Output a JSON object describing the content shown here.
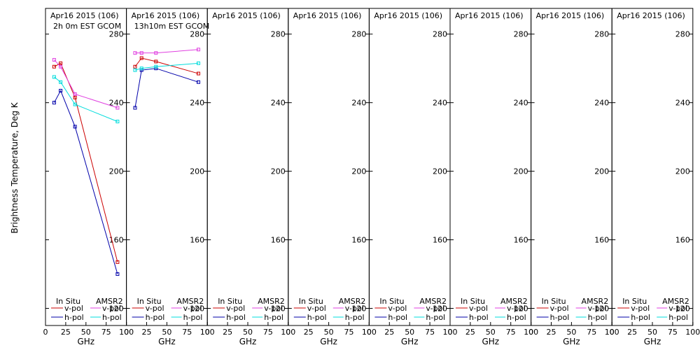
{
  "figure": {
    "ylabel": "Brightness Temperature, Deg K",
    "xlabel": "GHz",
    "legend": {
      "in_situ": "In Situ",
      "amsr2": "AMSR2",
      "vpol": "v-pol",
      "hpol": "h-pol"
    }
  },
  "chart_data": [
    {
      "type": "line",
      "title": "Apr16 2015 (106)",
      "subtitle": "2h 0m EST GCOM",
      "xlabel": "GHz",
      "ylabel": "Brightness Temperature, Deg K",
      "xlim": [
        0,
        100
      ],
      "ylim": [
        110,
        295
      ],
      "xticks": [
        0,
        25,
        50,
        75,
        100
      ],
      "yticks": [
        120,
        160,
        200,
        240,
        280
      ],
      "series": [
        {
          "name": "In Situ v-pol",
          "color": "#cc0000",
          "x": [
            10.7,
            18.7,
            36.5,
            89
          ],
          "y": [
            261,
            263,
            243,
            147
          ]
        },
        {
          "name": "In Situ h-pol",
          "color": "#0000aa",
          "x": [
            10.7,
            18.7,
            36.5,
            89
          ],
          "y": [
            240,
            247,
            226,
            140
          ]
        },
        {
          "name": "AMSR2 v-pol",
          "color": "#e040e0",
          "x": [
            10.7,
            18.7,
            36.5,
            89
          ],
          "y": [
            265,
            261,
            245,
            237
          ]
        },
        {
          "name": "AMSR2 h-pol",
          "color": "#00dcdc",
          "x": [
            10.7,
            18.7,
            36.5,
            89
          ],
          "y": [
            255,
            252,
            239,
            229
          ]
        }
      ]
    },
    {
      "type": "line",
      "title": "Apr16 2015 (106)",
      "subtitle": "13h10m EST GCOM",
      "xlabel": "GHz",
      "xlim": [
        0,
        100
      ],
      "ylim": [
        110,
        295
      ],
      "xticks": [
        0,
        25,
        50,
        75,
        100
      ],
      "yticks": [
        120,
        160,
        200,
        240,
        280
      ],
      "series": [
        {
          "name": "In Situ v-pol",
          "color": "#cc0000",
          "x": [
            10.7,
            18.7,
            36.5,
            89
          ],
          "y": [
            261,
            266,
            264,
            257
          ]
        },
        {
          "name": "In Situ h-pol",
          "color": "#0000aa",
          "x": [
            10.7,
            18.7,
            36.5,
            89
          ],
          "y": [
            237,
            259,
            260,
            252
          ]
        },
        {
          "name": "AMSR2 v-pol",
          "color": "#e040e0",
          "x": [
            10.7,
            18.7,
            36.5,
            89
          ],
          "y": [
            269,
            269,
            269,
            271
          ]
        },
        {
          "name": "AMSR2 h-pol",
          "color": "#00dcdc",
          "x": [
            10.7,
            18.7,
            36.5,
            89
          ],
          "y": [
            259,
            260,
            261,
            263
          ]
        }
      ]
    },
    {
      "type": "line",
      "title": "Apr16 2015 (106)",
      "subtitle": "",
      "xlabel": "GHz",
      "xlim": [
        0,
        100
      ],
      "ylim": [
        110,
        295
      ],
      "xticks": [
        0,
        25,
        50,
        75,
        100
      ],
      "yticks": [
        120,
        160,
        200,
        240,
        280
      ],
      "series": []
    },
    {
      "type": "line",
      "title": "Apr16 2015 (106)",
      "subtitle": "",
      "xlabel": "GHz",
      "xlim": [
        0,
        100
      ],
      "ylim": [
        110,
        295
      ],
      "xticks": [
        0,
        25,
        50,
        75,
        100
      ],
      "yticks": [
        120,
        160,
        200,
        240,
        280
      ],
      "series": []
    },
    {
      "type": "line",
      "title": "Apr16 2015 (106)",
      "subtitle": "",
      "xlabel": "GHz",
      "xlim": [
        0,
        100
      ],
      "ylim": [
        110,
        295
      ],
      "xticks": [
        0,
        25,
        50,
        75,
        100
      ],
      "yticks": [
        120,
        160,
        200,
        240,
        280
      ],
      "series": []
    },
    {
      "type": "line",
      "title": "Apr16 2015 (106)",
      "subtitle": "",
      "xlabel": "GHz",
      "xlim": [
        0,
        100
      ],
      "ylim": [
        110,
        295
      ],
      "xticks": [
        0,
        25,
        50,
        75,
        100
      ],
      "yticks": [
        120,
        160,
        200,
        240,
        280
      ],
      "series": []
    },
    {
      "type": "line",
      "title": "Apr16 2015 (106)",
      "subtitle": "",
      "xlabel": "GHz",
      "xlim": [
        0,
        100
      ],
      "ylim": [
        110,
        295
      ],
      "xticks": [
        0,
        25,
        50,
        75,
        100
      ],
      "yticks": [
        120,
        160,
        200,
        240,
        280
      ],
      "series": []
    },
    {
      "type": "line",
      "title": "Apr16 2015 (106)",
      "subtitle": "",
      "xlabel": "GHz",
      "xlim": [
        0,
        100
      ],
      "ylim": [
        110,
        295
      ],
      "xticks": [
        0,
        25,
        50,
        75,
        100
      ],
      "yticks": [
        120,
        160,
        200,
        240,
        280
      ],
      "series": []
    }
  ]
}
